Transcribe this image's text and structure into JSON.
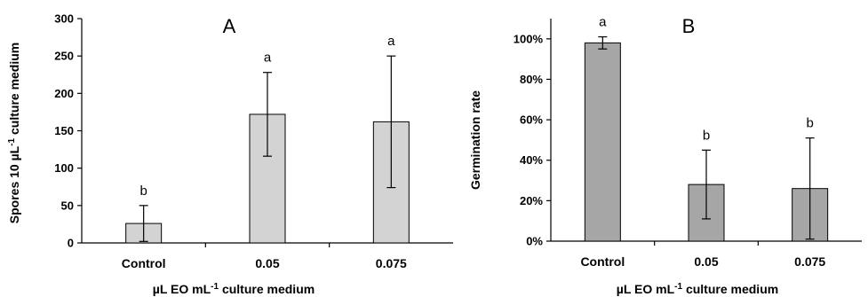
{
  "chart_data": [
    {
      "type": "bar",
      "panel_label": "A",
      "categories": [
        "Control",
        "0.05",
        "0.075"
      ],
      "values": [
        26,
        172,
        162
      ],
      "error": [
        24,
        56,
        88
      ],
      "significance": [
        "b",
        "a",
        "a"
      ],
      "ylim": [
        0,
        300
      ],
      "yticks": [
        "0",
        "50",
        "100",
        "150",
        "200",
        "250",
        "300"
      ],
      "ylabel": {
        "pre": "Spores 10 µL",
        "sup": "-1",
        "post": " culture medium"
      },
      "xlabel": {
        "pre": "µL EO mL",
        "sup": "-1",
        "post": " culture medium"
      },
      "bar_color": "#d3d3d3",
      "grid": false
    },
    {
      "type": "bar",
      "panel_label": "B",
      "categories": [
        "Control",
        "0.05",
        "0.075"
      ],
      "values": [
        98,
        28,
        26
      ],
      "error": [
        3,
        17,
        25
      ],
      "significance": [
        "a",
        "b",
        "b"
      ],
      "ylim": [
        0,
        110
      ],
      "yticks": [
        "0%",
        "20%",
        "40%",
        "60%",
        "80%",
        "100%"
      ],
      "ylabel": {
        "pre": "Germination rate",
        "sup": "",
        "post": ""
      },
      "xlabel": {
        "pre": "µL EO mL",
        "sup": "-1",
        "post": " culture medium"
      },
      "bar_color": "#a6a6a6",
      "grid": false
    }
  ]
}
